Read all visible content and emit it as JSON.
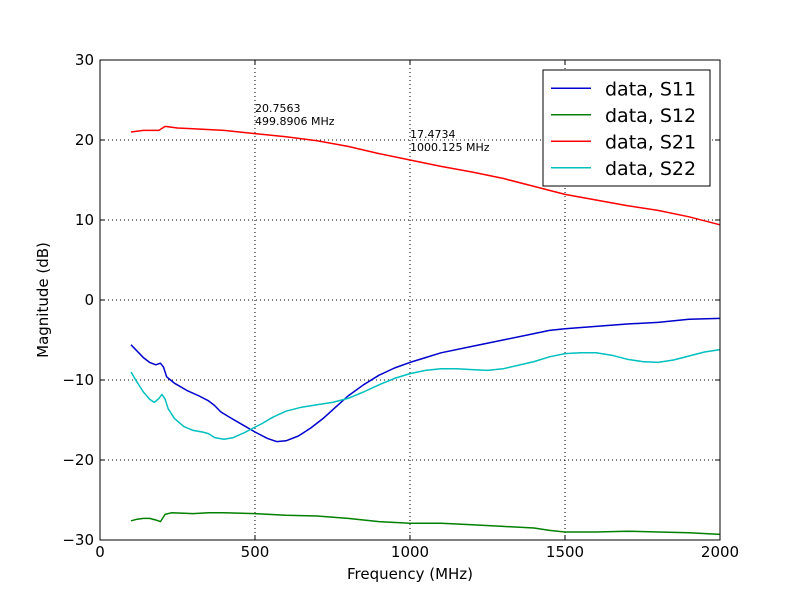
{
  "chart_data": {
    "type": "line",
    "title": "",
    "xlabel": "Frequency (MHz)",
    "ylabel": "Magnitude (dB)",
    "xlim": [
      0,
      2000
    ],
    "ylim": [
      -30,
      30
    ],
    "x_ticks": [
      0,
      500,
      1000,
      1500,
      2000
    ],
    "y_ticks": [
      -30,
      -20,
      -10,
      0,
      10,
      20,
      30
    ],
    "x_tick_labels": [
      "0",
      "500",
      "1000",
      "1500",
      "2000"
    ],
    "y_tick_labels": [
      "−30",
      "−20",
      "−10",
      "0",
      "10",
      "20",
      "30"
    ],
    "grid": true,
    "legend_position": "top-right",
    "series": [
      {
        "name": "data, S11",
        "color": "#0000cc",
        "points": [
          [
            100,
            -5.6
          ],
          [
            120,
            -6.4
          ],
          [
            140,
            -7.2
          ],
          [
            160,
            -7.8
          ],
          [
            180,
            -8.1
          ],
          [
            195,
            -7.9
          ],
          [
            205,
            -8.4
          ],
          [
            215,
            -9.6
          ],
          [
            240,
            -10.4
          ],
          [
            280,
            -11.3
          ],
          [
            320,
            -12.0
          ],
          [
            350,
            -12.6
          ],
          [
            370,
            -13.2
          ],
          [
            390,
            -14.0
          ],
          [
            420,
            -14.7
          ],
          [
            460,
            -15.6
          ],
          [
            500,
            -16.5
          ],
          [
            540,
            -17.3
          ],
          [
            570,
            -17.7
          ],
          [
            600,
            -17.6
          ],
          [
            640,
            -17.0
          ],
          [
            680,
            -16.0
          ],
          [
            720,
            -14.8
          ],
          [
            760,
            -13.4
          ],
          [
            800,
            -12.0
          ],
          [
            850,
            -10.6
          ],
          [
            900,
            -9.4
          ],
          [
            950,
            -8.5
          ],
          [
            1000,
            -7.8
          ],
          [
            1050,
            -7.2
          ],
          [
            1100,
            -6.6
          ],
          [
            1200,
            -5.8
          ],
          [
            1300,
            -5.0
          ],
          [
            1400,
            -4.2
          ],
          [
            1450,
            -3.8
          ],
          [
            1500,
            -3.6
          ],
          [
            1600,
            -3.3
          ],
          [
            1700,
            -3.0
          ],
          [
            1800,
            -2.8
          ],
          [
            1900,
            -2.4
          ],
          [
            2000,
            -2.3
          ]
        ]
      },
      {
        "name": "data, S12",
        "color": "#008000",
        "points": [
          [
            100,
            -27.6
          ],
          [
            120,
            -27.4
          ],
          [
            140,
            -27.3
          ],
          [
            160,
            -27.3
          ],
          [
            180,
            -27.5
          ],
          [
            195,
            -27.7
          ],
          [
            210,
            -26.8
          ],
          [
            230,
            -26.6
          ],
          [
            300,
            -26.7
          ],
          [
            350,
            -26.6
          ],
          [
            400,
            -26.6
          ],
          [
            500,
            -26.7
          ],
          [
            600,
            -26.9
          ],
          [
            700,
            -27.0
          ],
          [
            800,
            -27.3
          ],
          [
            900,
            -27.7
          ],
          [
            1000,
            -27.9
          ],
          [
            1100,
            -27.9
          ],
          [
            1200,
            -28.1
          ],
          [
            1300,
            -28.3
          ],
          [
            1400,
            -28.5
          ],
          [
            1450,
            -28.8
          ],
          [
            1500,
            -29.0
          ],
          [
            1600,
            -29.0
          ],
          [
            1700,
            -28.9
          ],
          [
            1800,
            -29.0
          ],
          [
            1900,
            -29.1
          ],
          [
            2000,
            -29.3
          ]
        ]
      },
      {
        "name": "data, S21",
        "color": "#ff0000",
        "points": [
          [
            100,
            21.0
          ],
          [
            140,
            21.2
          ],
          [
            190,
            21.2
          ],
          [
            210,
            21.7
          ],
          [
            250,
            21.5
          ],
          [
            300,
            21.4
          ],
          [
            400,
            21.2
          ],
          [
            500,
            20.8
          ],
          [
            600,
            20.4
          ],
          [
            700,
            19.9
          ],
          [
            800,
            19.2
          ],
          [
            900,
            18.3
          ],
          [
            1000,
            17.5
          ],
          [
            1100,
            16.7
          ],
          [
            1200,
            16.0
          ],
          [
            1300,
            15.2
          ],
          [
            1400,
            14.2
          ],
          [
            1500,
            13.2
          ],
          [
            1600,
            12.5
          ],
          [
            1700,
            11.8
          ],
          [
            1800,
            11.2
          ],
          [
            1900,
            10.4
          ],
          [
            2000,
            9.4
          ]
        ]
      },
      {
        "name": "data, S22",
        "color": "#00bfbf",
        "points": [
          [
            100,
            -9.0
          ],
          [
            120,
            -10.3
          ],
          [
            140,
            -11.5
          ],
          [
            160,
            -12.4
          ],
          [
            175,
            -12.8
          ],
          [
            190,
            -12.3
          ],
          [
            200,
            -11.8
          ],
          [
            210,
            -12.4
          ],
          [
            220,
            -13.6
          ],
          [
            240,
            -14.8
          ],
          [
            270,
            -15.8
          ],
          [
            300,
            -16.3
          ],
          [
            330,
            -16.5
          ],
          [
            350,
            -16.7
          ],
          [
            370,
            -17.2
          ],
          [
            400,
            -17.4
          ],
          [
            430,
            -17.2
          ],
          [
            470,
            -16.5
          ],
          [
            520,
            -15.5
          ],
          [
            560,
            -14.6
          ],
          [
            600,
            -13.9
          ],
          [
            650,
            -13.4
          ],
          [
            700,
            -13.1
          ],
          [
            750,
            -12.8
          ],
          [
            800,
            -12.3
          ],
          [
            850,
            -11.5
          ],
          [
            900,
            -10.6
          ],
          [
            950,
            -9.8
          ],
          [
            1000,
            -9.2
          ],
          [
            1050,
            -8.8
          ],
          [
            1100,
            -8.6
          ],
          [
            1150,
            -8.6
          ],
          [
            1200,
            -8.7
          ],
          [
            1250,
            -8.8
          ],
          [
            1300,
            -8.6
          ],
          [
            1400,
            -7.7
          ],
          [
            1450,
            -7.1
          ],
          [
            1500,
            -6.7
          ],
          [
            1550,
            -6.6
          ],
          [
            1600,
            -6.6
          ],
          [
            1650,
            -6.9
          ],
          [
            1700,
            -7.4
          ],
          [
            1750,
            -7.7
          ],
          [
            1800,
            -7.8
          ],
          [
            1850,
            -7.5
          ],
          [
            1900,
            -7.0
          ],
          [
            1950,
            -6.5
          ],
          [
            2000,
            -6.2
          ]
        ]
      }
    ],
    "annotations": [
      {
        "x": 500,
        "y": 20.75,
        "value": "20.7563",
        "freq": "499.8906 MHz"
      },
      {
        "x": 1000,
        "y": 17.47,
        "value": "17.4734",
        "freq": "1000.125 MHz"
      }
    ]
  }
}
